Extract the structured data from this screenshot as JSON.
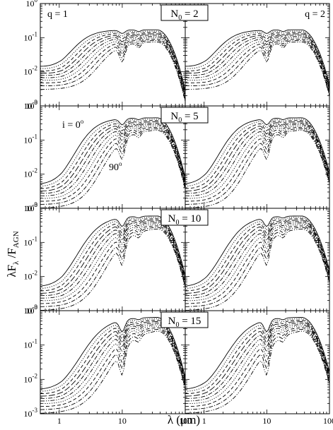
{
  "chart_data": {
    "type": "line",
    "layout": "4x2 grid of panels sharing axes",
    "xlabel": "λ (μm)",
    "ylabel": "λFλ /FAGN",
    "ylabel_parts": {
      "lead": "λF",
      "sub1": "λ",
      "mid": " /F",
      "sub2": "AGN"
    },
    "xlabel_parts": {
      "lead": "λ (μm)"
    },
    "xscale": "log",
    "yscale": "log",
    "xlim": [
      0.5,
      100
    ],
    "ylim": [
      0.001,
      1
    ],
    "xticks": [
      {
        "v": 1,
        "label": "1"
      },
      {
        "v": 10,
        "label": "10"
      },
      {
        "v": 100,
        "label": "100"
      }
    ],
    "yticks": [
      {
        "v": 1,
        "base": "10",
        "exp": "0",
        "label": "10^0"
      },
      {
        "v": 0.1,
        "base": "10",
        "exp": "-1",
        "label": "10^-1"
      },
      {
        "v": 0.01,
        "base": "10",
        "exp": "-2",
        "label": "10^-2"
      },
      {
        "v": 0.001,
        "base": "10",
        "exp": "-3",
        "label": "10^-3"
      }
    ],
    "rows": [
      {
        "N0": "2",
        "label": "N0 = 2",
        "label_base": "N",
        "label_sub": "0",
        "label_rest": " = 2"
      },
      {
        "N0": "5",
        "label": "N0 = 5",
        "label_base": "N",
        "label_sub": "0",
        "label_rest": " = 5"
      },
      {
        "N0": "10",
        "label": "N0 = 10",
        "label_base": "N",
        "label_sub": "0",
        "label_rest": " = 10"
      },
      {
        "N0": "15",
        "label": "N0 = 15",
        "label_base": "N",
        "label_sub": "0",
        "label_rest": " = 15"
      }
    ],
    "columns": [
      {
        "q": "1",
        "label": "q = 1"
      },
      {
        "q": "2",
        "label": "q = 2"
      }
    ],
    "annotations": {
      "inclination_top": {
        "text": "i = 0",
        "sup": "o"
      },
      "inclination_bottom": {
        "text": "90",
        "sup": "o"
      }
    },
    "series_styles": [
      "solid",
      "dot",
      "dash",
      "longdash",
      "dashdot",
      "dashdotdot",
      "dot",
      "dash",
      "dashdot",
      "dashdotdot"
    ],
    "inclination_series": 10,
    "approximate_curve_shape": {
      "x": [
        0.5,
        0.7,
        0.9,
        1.0,
        1.2,
        1.5,
        2,
        2.5,
        3,
        4,
        5,
        6,
        7,
        8,
        9,
        10,
        11,
        12,
        14,
        16,
        18,
        20,
        25,
        30,
        40,
        50,
        60,
        70,
        80,
        90,
        100
      ],
      "comment_free_values_per_row": [
        {
          "row": "N0 = 2",
          "face_on_peak": 0.17,
          "edge_on_floor": 0.003
        },
        {
          "row": "N0 = 5",
          "face_on_peak": 0.45,
          "edge_on_floor": 0.001
        },
        {
          "row": "N0 = 10",
          "face_on_peak": 0.6,
          "edge_on_floor": 0.001
        },
        {
          "row": "N0 = 15",
          "face_on_peak": 0.65,
          "edge_on_floor": 0.001
        }
      ]
    }
  }
}
